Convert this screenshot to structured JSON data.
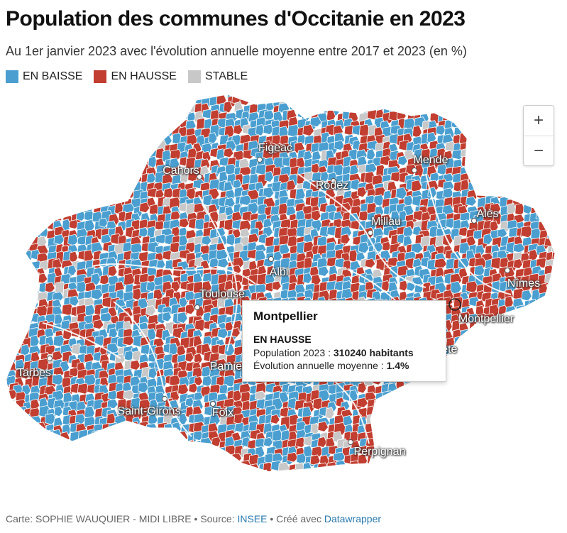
{
  "title": "Population des communes d'Occitanie en 2023",
  "subtitle": "Au 1er janvier 2023 avec l'évolution annuelle moyenne entre 2017 et 2023 (en %)",
  "legend": [
    {
      "label": "EN BAISSE",
      "color": "#4a9fd0"
    },
    {
      "label": "EN HAUSSE",
      "color": "#c13e30"
    },
    {
      "label": "STABLE",
      "color": "#c8c8c8"
    }
  ],
  "colors": {
    "baisse": "#4a9fd0",
    "hausse": "#c13e30",
    "stable": "#c8c8c8",
    "border": "#ffffff"
  },
  "zoom": {
    "in_label": "+",
    "out_label": "−"
  },
  "cities": [
    {
      "name": "Figeac"
    },
    {
      "name": "Cahors"
    },
    {
      "name": "Mende"
    },
    {
      "name": "Rodez"
    },
    {
      "name": "Alès"
    },
    {
      "name": "Millau"
    },
    {
      "name": "Albi"
    },
    {
      "name": "Nîmes"
    },
    {
      "name": "Toulouse"
    },
    {
      "name": "Montpellier"
    },
    {
      "name": "Sète"
    },
    {
      "name": "Tarbes"
    },
    {
      "name": "Pamiers"
    },
    {
      "name": "Saint-Girons"
    },
    {
      "name": "Foix"
    },
    {
      "name": "Perpignan"
    }
  ],
  "tooltip": {
    "title": "Montpellier",
    "status": "EN HAUSSE",
    "population_label": "Population 2023 : ",
    "population_value": "310240 habitants",
    "evolution_label": "Évolution annuelle moyenne : ",
    "evolution_value": "1.4%"
  },
  "footer": {
    "credit": "Carte: SOPHIE WAUQUIER - MIDI LIBRE • Source: ",
    "source_link": "INSEE",
    "made_with": " • Créé avec ",
    "tool_link": "Datawrapper"
  }
}
